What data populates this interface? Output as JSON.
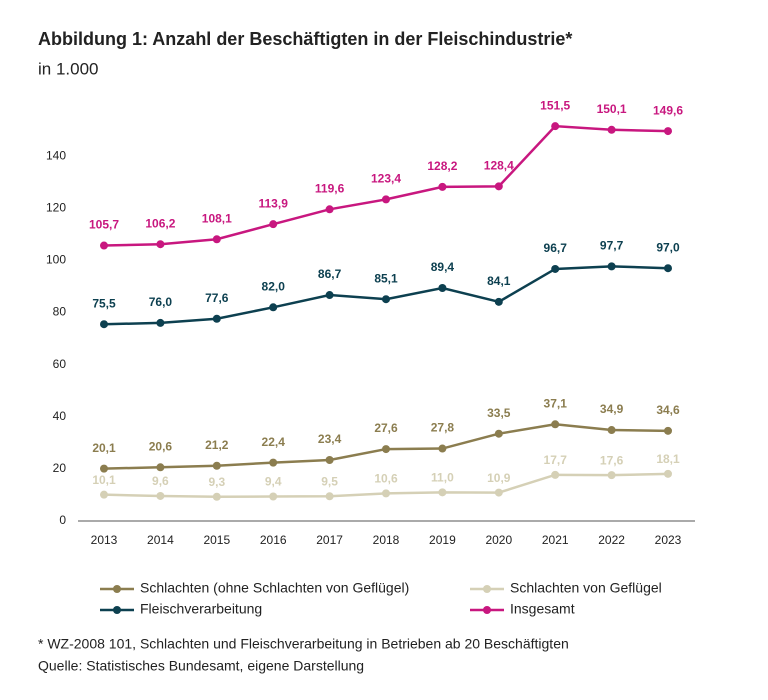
{
  "chart_data": {
    "type": "line",
    "title": "Abbildung 1: Anzahl der Beschäftigten in der Fleischindustrie*",
    "subtitle": "in 1.000",
    "categories": [
      "2013",
      "2014",
      "2015",
      "2016",
      "2017",
      "2018",
      "2019",
      "2020",
      "2021",
      "2022",
      "2023"
    ],
    "series": [
      {
        "name": "Schlachten (ohne Schlachten von Geflügel)",
        "color": "#8b7d4f",
        "values": [
          20.1,
          20.6,
          21.2,
          22.4,
          23.4,
          27.6,
          27.8,
          33.5,
          37.1,
          34.9,
          34.6
        ],
        "value_labels": [
          "20,1",
          "20,6",
          "21,2",
          "22,4",
          "23,4",
          "27,6",
          "27,8",
          "33,5",
          "37,1",
          "34,9",
          "34,6"
        ]
      },
      {
        "name": "Schlachten von Geflügel",
        "color": "#d5d0b6",
        "values": [
          10.1,
          9.6,
          9.3,
          9.4,
          9.5,
          10.6,
          11.0,
          10.9,
          17.7,
          17.6,
          18.1
        ],
        "value_labels": [
          "10,1",
          "9,6",
          "9,3",
          "9,4",
          "9,5",
          "10,6",
          "11,0",
          "10,9",
          "17,7",
          "17,6",
          "18,1"
        ]
      },
      {
        "name": "Fleischverarbeitung",
        "color": "#0d4050",
        "values": [
          75.5,
          76.0,
          77.6,
          82.0,
          86.7,
          85.1,
          89.4,
          84.1,
          96.7,
          97.7,
          97.0
        ],
        "value_labels": [
          "75,5",
          "76,0",
          "77,6",
          "82,0",
          "86,7",
          "85,1",
          "89,4",
          "84,1",
          "96,7",
          "97,7",
          "97,0"
        ]
      },
      {
        "name": "Insgesamt",
        "color": "#c8177f",
        "values": [
          105.7,
          106.2,
          108.1,
          113.9,
          119.6,
          123.4,
          128.2,
          128.4,
          151.5,
          150.1,
          149.6
        ],
        "value_labels": [
          "105,7",
          "106,2",
          "108,1",
          "113,9",
          "119,6",
          "123,4",
          "128,2",
          "128,4",
          "151,5",
          "150,1",
          "149,6"
        ]
      }
    ],
    "ylim": [
      0,
      160
    ],
    "yticks": [
      0,
      20,
      40,
      60,
      80,
      100,
      120,
      140
    ],
    "notes": [
      "* WZ-2008 101, Schlachten und Fleischverarbeitung in Betrieben ab 20 Beschäftigten",
      "Quelle: Statistisches Bundesamt, eigene Darstellung"
    ]
  }
}
